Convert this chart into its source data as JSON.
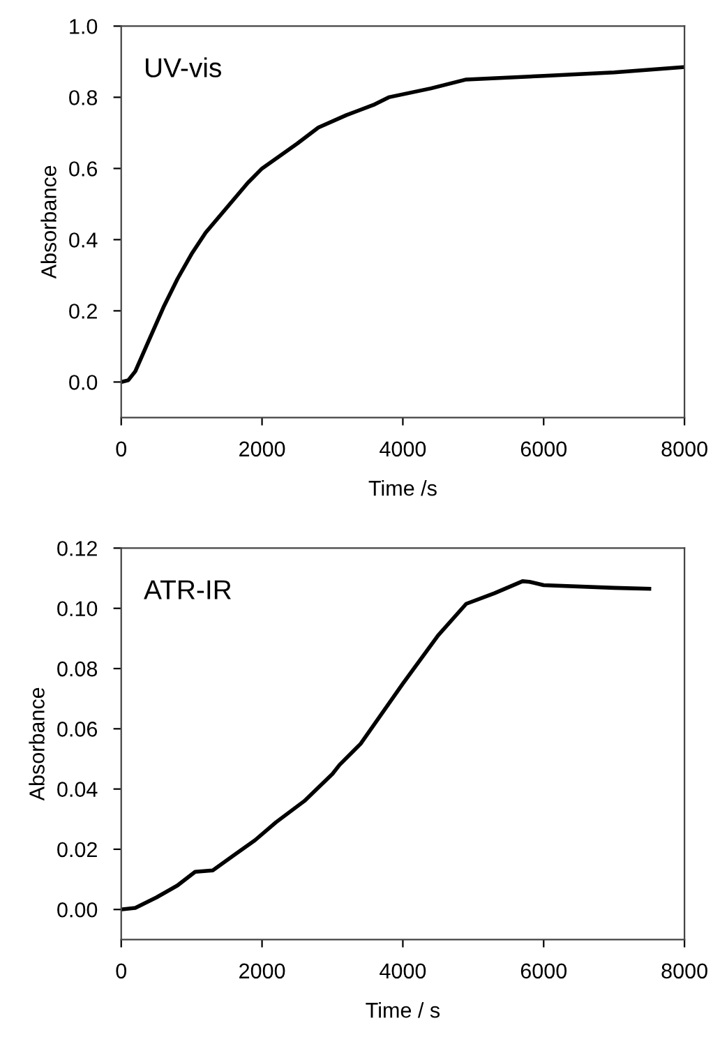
{
  "chart_data": [
    {
      "type": "line",
      "xlabel": "Time /s",
      "ylabel": "Absorbance",
      "annotations": [
        "UV-vis"
      ],
      "xlim": [
        0,
        8000
      ],
      "xticks": [
        0,
        2000,
        4000,
        6000,
        8000
      ],
      "ylim": [
        -0.1,
        1.0
      ],
      "yticks": [
        {
          "value": 0,
          "label": "0.0"
        },
        0.2,
        0.4,
        0.6,
        0.8,
        {
          "value": 1,
          "label": "1.0"
        }
      ],
      "marker": "none",
      "line_style": "solid",
      "series": [
        {
          "color": "#000000",
          "x": [
            0,
            100,
            200,
            400,
            600,
            800,
            1000,
            1200,
            1500,
            1800,
            2000,
            2500,
            2800,
            3200,
            3600,
            3800,
            4400,
            4900,
            6000,
            7000,
            8000
          ],
          "values": [
            0,
            0.005,
            0.03,
            0.12,
            0.21,
            0.29,
            0.36,
            0.42,
            0.49,
            0.56,
            0.6,
            0.67,
            0.715,
            0.75,
            0.78,
            0.8,
            0.825,
            0.85,
            0.86,
            0.87,
            0.885
          ]
        }
      ]
    },
    {
      "type": "line",
      "xlabel": "Time / s",
      "ylabel": "Absorbance",
      "annotations": [
        "ATR-IR"
      ],
      "xlim": [
        0,
        8000
      ],
      "xticks": [
        0,
        2000,
        4000,
        6000,
        8000
      ],
      "ylim": [
        -0.01,
        0.12
      ],
      "yticks": [
        {
          "value": 0,
          "label": "0.00"
        },
        {
          "value": 0.02,
          "label": "0.02"
        },
        {
          "value": 0.04,
          "label": "0.04"
        },
        {
          "value": 0.06,
          "label": "0.06"
        },
        {
          "value": 0.08,
          "label": "0.08"
        },
        {
          "value": 0.1,
          "label": "0.10"
        },
        {
          "value": 0.12,
          "label": "0.12"
        }
      ],
      "marker": "none",
      "line_style": "solid",
      "series": [
        {
          "color": "#000000",
          "x": [
            0,
            200,
            500,
            800,
            1050,
            1300,
            1600,
            1900,
            2200,
            2600,
            3000,
            3100,
            3400,
            4000,
            4500,
            4900,
            5300,
            5700,
            5800,
            6000,
            7000,
            7500
          ],
          "values": [
            0,
            0.0005,
            0.004,
            0.008,
            0.0125,
            0.013,
            0.018,
            0.023,
            0.029,
            0.036,
            0.045,
            0.048,
            0.055,
            0.075,
            0.091,
            0.1015,
            0.105,
            0.109,
            0.1088,
            0.1077,
            0.1068,
            0.1065
          ]
        }
      ]
    }
  ]
}
